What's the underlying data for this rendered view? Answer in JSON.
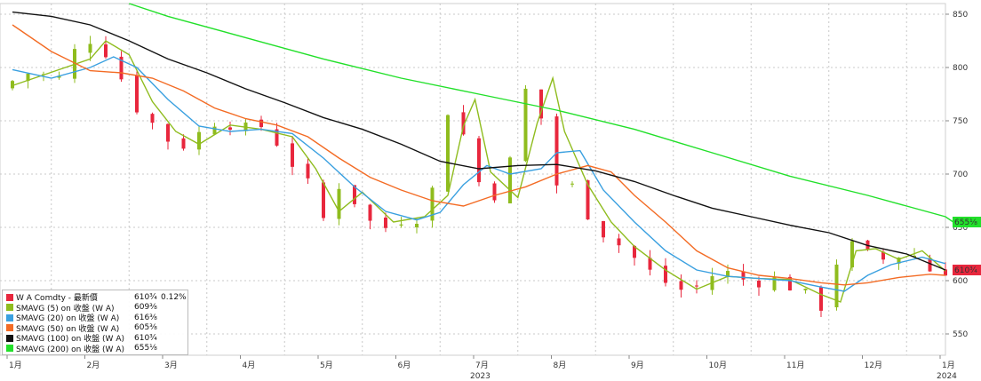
{
  "chart_data": {
    "type": "candlestick",
    "title": "",
    "xlabel": "",
    "ylabel": "",
    "ylim": [
      530,
      860
    ],
    "x_ticks": [
      "1月",
      "2月",
      "3月",
      "4月",
      "5月",
      "6月",
      "7月",
      "8月",
      "9月",
      "10月",
      "11月",
      "12月",
      "1月"
    ],
    "x_year_labels": [
      {
        "label": "2023",
        "month_index": 6
      },
      {
        "label": "2024",
        "month_index": 12
      }
    ],
    "y_ticks": [
      550,
      600,
      650,
      700,
      750,
      800,
      850
    ],
    "grid": true,
    "legend_position": "bottom-left",
    "price_path": [
      [
        0,
        780
      ],
      [
        0.4,
        795
      ],
      [
        0.8,
        790
      ],
      [
        1.0,
        815
      ],
      [
        1.15,
        830
      ],
      [
        1.3,
        820
      ],
      [
        1.5,
        810
      ],
      [
        1.7,
        770
      ],
      [
        1.9,
        755
      ],
      [
        2.1,
        740
      ],
      [
        2.3,
        725
      ],
      [
        2.5,
        730
      ],
      [
        2.75,
        750
      ],
      [
        3.0,
        748
      ],
      [
        3.15,
        738
      ],
      [
        3.3,
        750
      ],
      [
        3.5,
        740
      ],
      [
        3.7,
        720
      ],
      [
        3.9,
        700
      ],
      [
        4.1,
        680
      ],
      [
        4.2,
        658
      ],
      [
        4.4,
        690
      ],
      [
        4.6,
        675
      ],
      [
        4.8,
        655
      ],
      [
        5.0,
        650
      ],
      [
        5.2,
        658
      ],
      [
        5.4,
        660
      ],
      [
        5.6,
        685
      ],
      [
        5.75,
        742
      ],
      [
        5.85,
        778
      ],
      [
        5.95,
        755
      ],
      [
        6.1,
        700
      ],
      [
        6.3,
        685
      ],
      [
        6.5,
        678
      ],
      [
        6.7,
        745
      ],
      [
        6.85,
        795
      ],
      [
        6.95,
        775
      ],
      [
        7.05,
        730
      ],
      [
        7.2,
        690
      ],
      [
        7.4,
        688
      ],
      [
        7.55,
        670
      ],
      [
        7.7,
        650
      ],
      [
        7.9,
        640
      ],
      [
        8.1,
        628
      ],
      [
        8.3,
        614
      ],
      [
        8.5,
        602
      ],
      [
        8.7,
        595
      ],
      [
        8.9,
        588
      ],
      [
        9.1,
        600
      ],
      [
        9.3,
        610
      ],
      [
        9.5,
        604
      ],
      [
        9.7,
        598
      ],
      [
        9.9,
        602
      ],
      [
        10.1,
        600
      ],
      [
        10.3,
        590
      ],
      [
        10.5,
        582
      ],
      [
        10.62,
        575
      ],
      [
        10.72,
        600
      ],
      [
        10.9,
        640
      ],
      [
        11.1,
        625
      ],
      [
        11.3,
        622
      ],
      [
        11.5,
        618
      ],
      [
        11.7,
        630
      ],
      [
        11.9,
        618
      ],
      [
        12.0,
        610
      ]
    ],
    "series": [
      {
        "name": "W A Comdty - 最新價",
        "value_label": "610¾",
        "change": "0.12%",
        "color": "#e8273d"
      },
      {
        "name": "SMAVG (5)  on 收盤 (W A)",
        "value_label": "609⅜",
        "change": "",
        "color": "#8fbc1e",
        "path": [
          [
            0,
            783
          ],
          [
            1.0,
            808
          ],
          [
            1.2,
            825
          ],
          [
            1.5,
            812
          ],
          [
            1.8,
            768
          ],
          [
            2.1,
            740
          ],
          [
            2.4,
            728
          ],
          [
            2.8,
            746
          ],
          [
            3.2,
            742
          ],
          [
            3.6,
            735
          ],
          [
            3.9,
            705
          ],
          [
            4.2,
            665
          ],
          [
            4.5,
            683
          ],
          [
            4.9,
            655
          ],
          [
            5.3,
            660
          ],
          [
            5.6,
            680
          ],
          [
            5.8,
            745
          ],
          [
            5.95,
            770
          ],
          [
            6.15,
            702
          ],
          [
            6.5,
            678
          ],
          [
            6.75,
            748
          ],
          [
            6.95,
            790
          ],
          [
            7.1,
            740
          ],
          [
            7.4,
            690
          ],
          [
            7.7,
            655
          ],
          [
            8.0,
            632
          ],
          [
            8.4,
            610
          ],
          [
            8.8,
            592
          ],
          [
            9.2,
            604
          ],
          [
            9.6,
            602
          ],
          [
            10.0,
            601
          ],
          [
            10.4,
            587
          ],
          [
            10.65,
            580
          ],
          [
            10.85,
            628
          ],
          [
            11.1,
            630
          ],
          [
            11.4,
            620
          ],
          [
            11.7,
            628
          ],
          [
            12.0,
            609
          ]
        ]
      },
      {
        "name": "SMAVG (20)  on 收盤 (W A)",
        "value_label": "616⅜",
        "change": "",
        "color": "#3aa0e0",
        "path": [
          [
            0,
            798
          ],
          [
            0.5,
            790
          ],
          [
            1.0,
            800
          ],
          [
            1.3,
            810
          ],
          [
            1.6,
            800
          ],
          [
            2.0,
            770
          ],
          [
            2.4,
            745
          ],
          [
            2.8,
            740
          ],
          [
            3.2,
            742
          ],
          [
            3.6,
            738
          ],
          [
            4.0,
            715
          ],
          [
            4.4,
            688
          ],
          [
            4.8,
            665
          ],
          [
            5.2,
            657
          ],
          [
            5.5,
            664
          ],
          [
            5.8,
            690
          ],
          [
            6.1,
            708
          ],
          [
            6.4,
            700
          ],
          [
            6.8,
            705
          ],
          [
            7.0,
            720
          ],
          [
            7.3,
            722
          ],
          [
            7.6,
            685
          ],
          [
            8.0,
            655
          ],
          [
            8.4,
            628
          ],
          [
            8.8,
            610
          ],
          [
            9.2,
            604
          ],
          [
            9.6,
            602
          ],
          [
            10.0,
            600
          ],
          [
            10.4,
            594
          ],
          [
            10.7,
            590
          ],
          [
            11.0,
            605
          ],
          [
            11.3,
            615
          ],
          [
            11.7,
            622
          ],
          [
            12.0,
            616
          ]
        ]
      },
      {
        "name": "SMAVG (50)  on 收盤 (W A)",
        "value_label": "605⅜",
        "change": "",
        "color": "#f36b24",
        "path": [
          [
            0,
            840
          ],
          [
            0.5,
            815
          ],
          [
            1.0,
            797
          ],
          [
            1.4,
            795
          ],
          [
            1.8,
            790
          ],
          [
            2.2,
            778
          ],
          [
            2.6,
            762
          ],
          [
            3.0,
            752
          ],
          [
            3.4,
            746
          ],
          [
            3.8,
            735
          ],
          [
            4.2,
            715
          ],
          [
            4.6,
            697
          ],
          [
            5.0,
            685
          ],
          [
            5.4,
            675
          ],
          [
            5.8,
            670
          ],
          [
            6.2,
            680
          ],
          [
            6.6,
            688
          ],
          [
            7.0,
            700
          ],
          [
            7.4,
            708
          ],
          [
            7.7,
            702
          ],
          [
            8.0,
            680
          ],
          [
            8.4,
            655
          ],
          [
            8.8,
            628
          ],
          [
            9.2,
            612
          ],
          [
            9.6,
            605
          ],
          [
            10.0,
            602
          ],
          [
            10.4,
            598
          ],
          [
            10.7,
            596
          ],
          [
            11.0,
            598
          ],
          [
            11.4,
            603
          ],
          [
            11.8,
            606
          ],
          [
            12.0,
            605
          ]
        ]
      },
      {
        "name": "SMAVG (100)  on 收盤 (W A)",
        "value_label": "610¾",
        "change": "",
        "color": "#111111",
        "path": [
          [
            0,
            852
          ],
          [
            0.5,
            848
          ],
          [
            1.0,
            840
          ],
          [
            1.5,
            825
          ],
          [
            2.0,
            808
          ],
          [
            2.5,
            795
          ],
          [
            3.0,
            780
          ],
          [
            3.5,
            767
          ],
          [
            4.0,
            753
          ],
          [
            4.5,
            742
          ],
          [
            5.0,
            728
          ],
          [
            5.5,
            712
          ],
          [
            6.0,
            705
          ],
          [
            6.5,
            708
          ],
          [
            7.0,
            709
          ],
          [
            7.5,
            703
          ],
          [
            8.0,
            693
          ],
          [
            8.5,
            680
          ],
          [
            9.0,
            668
          ],
          [
            9.5,
            660
          ],
          [
            10.0,
            652
          ],
          [
            10.5,
            645
          ],
          [
            11.0,
            633
          ],
          [
            11.5,
            625
          ],
          [
            12.0,
            610
          ]
        ]
      },
      {
        "name": "SMAVG (200)  on 收盤 (W A)",
        "value_label": "655⅛",
        "change": "",
        "color": "#22e02a",
        "path": [
          [
            1.5,
            860
          ],
          [
            2.0,
            848
          ],
          [
            3.0,
            828
          ],
          [
            4.0,
            808
          ],
          [
            5.0,
            790
          ],
          [
            6.0,
            775
          ],
          [
            7.0,
            760
          ],
          [
            8.0,
            742
          ],
          [
            9.0,
            720
          ],
          [
            10.0,
            698
          ],
          [
            11.0,
            680
          ],
          [
            12.0,
            660
          ],
          [
            12.1,
            655
          ]
        ]
      }
    ],
    "right_value_labels": [
      {
        "label": "655⅛",
        "value": 655,
        "color": "#22e02a"
      },
      {
        "label": "610¾",
        "value": 610,
        "color": "#e8273d"
      }
    ]
  }
}
